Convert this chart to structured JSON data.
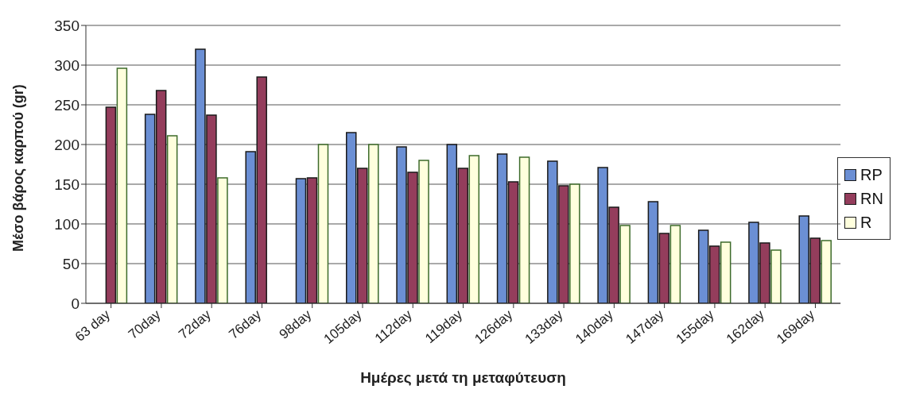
{
  "chart_data": {
    "type": "bar",
    "xlabel": "Ημέρες μετά τη μεταφύτευση",
    "ylabel": "Μέσο βάρος καρπού (gr)",
    "categories": [
      "63 day",
      "70day",
      "72day",
      "76day",
      "98day",
      "105day",
      "112day",
      "119day",
      "126day",
      "133day",
      "140day",
      "147day",
      "155day",
      "162day",
      "169day"
    ],
    "series": [
      {
        "name": "RP",
        "color": "#6b8fd4",
        "values": [
          null,
          238,
          320,
          191,
          157,
          215,
          197,
          200,
          188,
          179,
          171,
          128,
          92,
          102,
          110
        ]
      },
      {
        "name": "RN",
        "color": "#943d5c",
        "values": [
          247,
          268,
          237,
          285,
          158,
          170,
          165,
          170,
          153,
          148,
          121,
          88,
          72,
          76,
          82
        ]
      },
      {
        "name": "R",
        "color": "#ffffdd",
        "values": [
          296,
          211,
          158,
          null,
          200,
          200,
          180,
          186,
          184,
          150,
          98,
          98,
          77,
          67,
          79
        ]
      }
    ],
    "ylim": [
      0,
      350
    ],
    "yticks": [
      0,
      50,
      100,
      150,
      200,
      250,
      300,
      350
    ],
    "grid": "y",
    "legend": "right"
  }
}
